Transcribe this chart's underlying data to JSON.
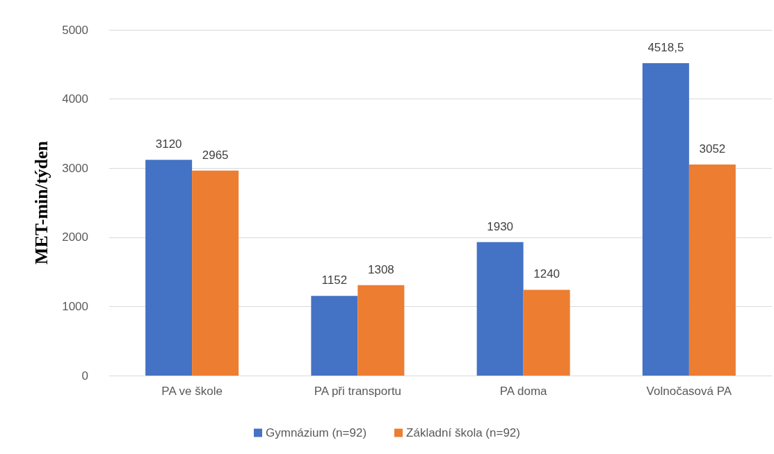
{
  "chart_data": {
    "type": "bar",
    "ylabel": "MET-min/týden",
    "categories": [
      "PA ve škole",
      "PA při transportu",
      "PA doma",
      "Volnočasová PA"
    ],
    "series": [
      {
        "name": "Gymnázium (n=92)",
        "color": "#4472c4",
        "values": [
          3120,
          1152,
          1930,
          4518.5
        ],
        "value_labels": [
          "3120",
          "1152",
          "1930",
          "4518,5"
        ]
      },
      {
        "name": "Základní škola (n=92)",
        "color": "#ed7d31",
        "values": [
          2965,
          1308,
          1240,
          3052
        ],
        "value_labels": [
          "2965",
          "1308",
          "1240",
          "3052"
        ]
      }
    ],
    "ylim": [
      0,
      5000
    ],
    "yticks": [
      0,
      1000,
      2000,
      3000,
      4000,
      5000
    ],
    "grid": "y",
    "legend": "bottom"
  }
}
